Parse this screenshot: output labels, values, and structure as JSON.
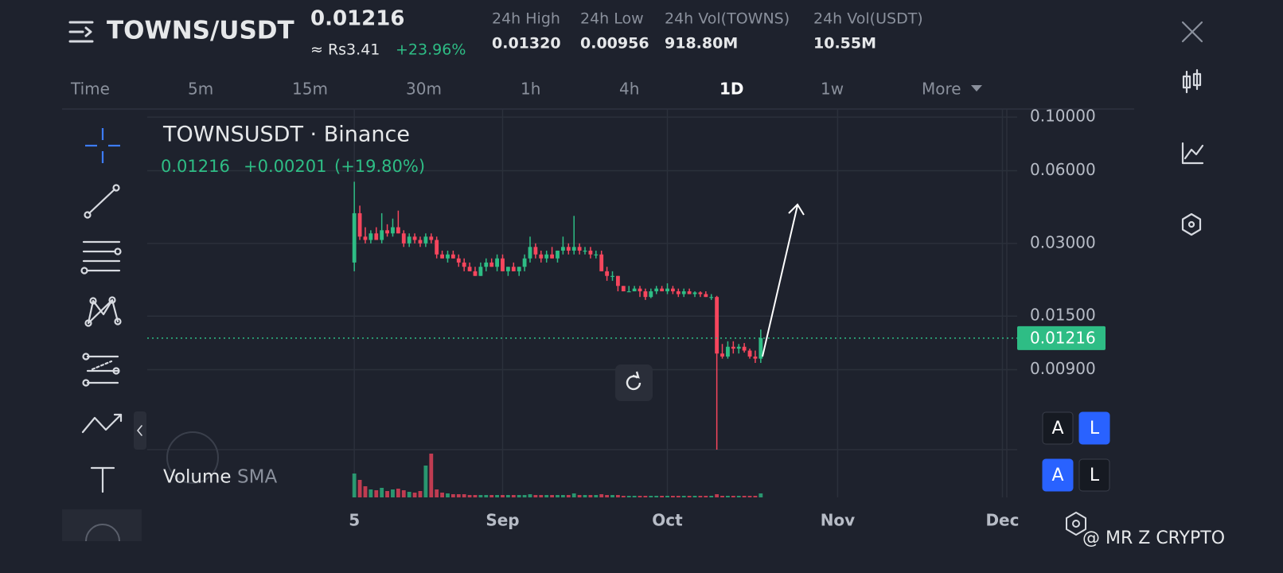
{
  "header": {
    "pair": "TOWNS/USDT",
    "price": "0.01216",
    "fiat": "≈ Rs3.41",
    "change": "+23.96%",
    "stats": [
      {
        "label": "24h High",
        "value": "0.01320"
      },
      {
        "label": "24h Low",
        "value": "0.00956"
      },
      {
        "label": "24h Vol(TOWNS)",
        "value": "918.80M"
      },
      {
        "label": "24h Vol(USDT)",
        "value": "10.55M"
      }
    ]
  },
  "timeframes": {
    "items": [
      "Time",
      "5m",
      "15m",
      "30m",
      "1h",
      "4h",
      "1D",
      "1w",
      "More"
    ],
    "active": "1D"
  },
  "chart_data": {
    "type": "candlestick",
    "title": "TOWNSUSDT · Binance",
    "legend": {
      "price": "0.01216",
      "change": "+0.00201",
      "percent": "(+19.80%)"
    },
    "log_scale": true,
    "grid": true,
    "up_color": "#2ebd85",
    "down_color": "#f6465d",
    "ylim": [
      0.0042,
      0.108
    ],
    "yticks": [
      {
        "value": 0.1,
        "label": "0.10000"
      },
      {
        "value": 0.06,
        "label": "0.06000"
      },
      {
        "value": 0.03,
        "label": "0.03000"
      },
      {
        "value": 0.015,
        "label": "0.01500"
      },
      {
        "value": 0.009,
        "label": "0.00900"
      }
    ],
    "xlim": [
      -37.7,
      118.8
    ],
    "xticks": [
      {
        "value": 0,
        "label": "5"
      },
      {
        "value": 27,
        "label": "Sep"
      },
      {
        "value": 57,
        "label": "Oct"
      },
      {
        "value": 88,
        "label": "Nov"
      },
      {
        "value": 118,
        "label": "Dec"
      }
    ],
    "last_price": {
      "value": 0.01216,
      "label": "0.01216"
    },
    "ohlc": [
      [
        0.025,
        0.054,
        0.023,
        0.04
      ],
      [
        0.04,
        0.043,
        0.031,
        0.032
      ],
      [
        0.032,
        0.035,
        0.03,
        0.031
      ],
      [
        0.031,
        0.034,
        0.03,
        0.033
      ],
      [
        0.033,
        0.035,
        0.031,
        0.031
      ],
      [
        0.031,
        0.04,
        0.03,
        0.034
      ],
      [
        0.034,
        0.036,
        0.032,
        0.033
      ],
      [
        0.033,
        0.038,
        0.032,
        0.035
      ],
      [
        0.035,
        0.041,
        0.033,
        0.033
      ],
      [
        0.033,
        0.034,
        0.029,
        0.03
      ],
      [
        0.03,
        0.033,
        0.029,
        0.032
      ],
      [
        0.032,
        0.033,
        0.03,
        0.031
      ],
      [
        0.031,
        0.032,
        0.029,
        0.03
      ],
      [
        0.03,
        0.033,
        0.029,
        0.032
      ],
      [
        0.032,
        0.033,
        0.03,
        0.031
      ],
      [
        0.031,
        0.032,
        0.026,
        0.027
      ],
      [
        0.027,
        0.028,
        0.026,
        0.026
      ],
      [
        0.026,
        0.028,
        0.025,
        0.027
      ],
      [
        0.027,
        0.028,
        0.026,
        0.026
      ],
      [
        0.026,
        0.027,
        0.024,
        0.025
      ],
      [
        0.025,
        0.026,
        0.023,
        0.024
      ],
      [
        0.024,
        0.025,
        0.023,
        0.023
      ],
      [
        0.023,
        0.024,
        0.022,
        0.022
      ],
      [
        0.022,
        0.025,
        0.022,
        0.024
      ],
      [
        0.024,
        0.026,
        0.023,
        0.025
      ],
      [
        0.025,
        0.026,
        0.024,
        0.024
      ],
      [
        0.024,
        0.027,
        0.023,
        0.026
      ],
      [
        0.026,
        0.027,
        0.023,
        0.023
      ],
      [
        0.023,
        0.024,
        0.022,
        0.024
      ],
      [
        0.024,
        0.025,
        0.023,
        0.023
      ],
      [
        0.023,
        0.024,
        0.022,
        0.024
      ],
      [
        0.024,
        0.027,
        0.023,
        0.026
      ],
      [
        0.026,
        0.032,
        0.025,
        0.029
      ],
      [
        0.029,
        0.03,
        0.026,
        0.027
      ],
      [
        0.027,
        0.028,
        0.025,
        0.026
      ],
      [
        0.026,
        0.028,
        0.025,
        0.027
      ],
      [
        0.027,
        0.029,
        0.026,
        0.026
      ],
      [
        0.026,
        0.028,
        0.025,
        0.028
      ],
      [
        0.028,
        0.032,
        0.027,
        0.029
      ],
      [
        0.029,
        0.03,
        0.027,
        0.028
      ],
      [
        0.028,
        0.039,
        0.027,
        0.029
      ],
      [
        0.029,
        0.03,
        0.027,
        0.028
      ],
      [
        0.028,
        0.029,
        0.027,
        0.028
      ],
      [
        0.028,
        0.029,
        0.026,
        0.027
      ],
      [
        0.027,
        0.028,
        0.026,
        0.027
      ],
      [
        0.027,
        0.028,
        0.023,
        0.023
      ],
      [
        0.023,
        0.024,
        0.021,
        0.022
      ],
      [
        0.022,
        0.023,
        0.021,
        0.022
      ],
      [
        0.022,
        0.022,
        0.019,
        0.02
      ],
      [
        0.02,
        0.02,
        0.019,
        0.019
      ],
      [
        0.019,
        0.02,
        0.019,
        0.019
      ],
      [
        0.019,
        0.02,
        0.019,
        0.0195
      ],
      [
        0.0195,
        0.02,
        0.018,
        0.019
      ],
      [
        0.019,
        0.0195,
        0.0175,
        0.018
      ],
      [
        0.018,
        0.0195,
        0.0178,
        0.019
      ],
      [
        0.019,
        0.02,
        0.0185,
        0.0195
      ],
      [
        0.0195,
        0.02,
        0.019,
        0.019
      ],
      [
        0.019,
        0.0205,
        0.0185,
        0.0195
      ],
      [
        0.0195,
        0.02,
        0.0185,
        0.019
      ],
      [
        0.019,
        0.0195,
        0.018,
        0.0185
      ],
      [
        0.0185,
        0.0195,
        0.018,
        0.019
      ],
      [
        0.019,
        0.0195,
        0.0185,
        0.0185
      ],
      [
        0.0185,
        0.019,
        0.018,
        0.0188
      ],
      [
        0.0188,
        0.019,
        0.018,
        0.0185
      ],
      [
        0.0185,
        0.019,
        0.018,
        0.018
      ],
      [
        0.018,
        0.0185,
        0.0175,
        0.018
      ],
      [
        0.018,
        0.0182,
        0.0042,
        0.0105
      ],
      [
        0.0105,
        0.0115,
        0.01,
        0.0102
      ],
      [
        0.0102,
        0.0118,
        0.01,
        0.0112
      ],
      [
        0.0112,
        0.0118,
        0.0105,
        0.011
      ],
      [
        0.011,
        0.0115,
        0.0105,
        0.0112
      ],
      [
        0.0112,
        0.0116,
        0.0106,
        0.0108
      ],
      [
        0.0108,
        0.011,
        0.01,
        0.0102
      ],
      [
        0.0102,
        0.0108,
        0.0096,
        0.01
      ],
      [
        0.01,
        0.0132,
        0.0096,
        0.01216
      ]
    ],
    "volume_label": "Volume",
    "volume_sma": "SMA",
    "volume_ylim": [
      0,
      60
    ],
    "volume": [
      30,
      22,
      14,
      10,
      9,
      12,
      8,
      10,
      11,
      9,
      7,
      6,
      8,
      40,
      55,
      10,
      6,
      5,
      4,
      4,
      4,
      3,
      3,
      3,
      3,
      3,
      3,
      3,
      3,
      3,
      3,
      3,
      4,
      3,
      3,
      3,
      3,
      3,
      3,
      3,
      5,
      3,
      3,
      3,
      3,
      4,
      3,
      3,
      3,
      2,
      2,
      2,
      2,
      2,
      2,
      2,
      2,
      2,
      2,
      2,
      2,
      2,
      2,
      2,
      2,
      2,
      4,
      2,
      2,
      2,
      2,
      2,
      2,
      2,
      5
    ]
  },
  "scale_buttons": [
    "A",
    "L",
    "A",
    "L"
  ],
  "watermark": "@ MR Z CRYPTO"
}
